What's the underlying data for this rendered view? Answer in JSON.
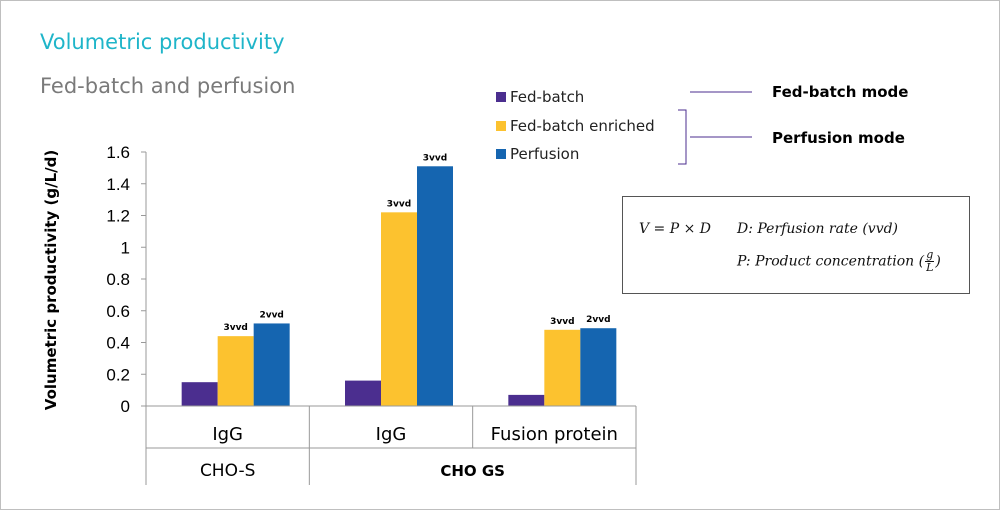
{
  "title": "Volumetric productivity",
  "subtitle": "Fed-batch and perfusion",
  "colors": {
    "fed_batch": "#4b2e8f",
    "fed_batch_enriched": "#fcc22f",
    "perfusion": "#1565b0"
  },
  "mode_labels": {
    "fed_batch_mode": "Fed-batch mode",
    "perfusion_mode": "Perfusion mode"
  },
  "formula": {
    "line1": "V = P × D",
    "line2": "D: Perfusion rate (vvd)",
    "line3_prefix": "P: Product concentration (",
    "frac_num": "g",
    "frac_den": "L",
    "line3_suffix": ")"
  },
  "chart_data": {
    "type": "bar",
    "ylabel": "Volumetric productivity (g/L/d)",
    "ylim": [
      0,
      1.6
    ],
    "yticks": [
      "0",
      "0.2",
      "0.4",
      "0.6",
      "0.8",
      "1",
      "1.2",
      "1.4",
      "1.6"
    ],
    "categories": [
      "IgG",
      "IgG",
      "Fusion protein"
    ],
    "groups": [
      {
        "label": "CHO-S",
        "span": 1
      },
      {
        "label": "CHO GS",
        "span": 2
      }
    ],
    "series": [
      {
        "name": "Fed-batch",
        "color": "#4b2e8f",
        "values": [
          0.15,
          0.16,
          0.07
        ]
      },
      {
        "name": "Fed-batch enriched",
        "color": "#fcc22f",
        "values": [
          0.44,
          1.22,
          0.48
        ]
      },
      {
        "name": "Perfusion",
        "color": "#1565b0",
        "values": [
          0.52,
          1.51,
          0.49
        ]
      }
    ],
    "bar_annotations": [
      {
        "series": 1,
        "category": 0,
        "text": "3vvd"
      },
      {
        "series": 2,
        "category": 0,
        "text": "2vvd"
      },
      {
        "series": 1,
        "category": 1,
        "text": "3vvd"
      },
      {
        "series": 2,
        "category": 1,
        "text": "3vvd"
      },
      {
        "series": 1,
        "category": 2,
        "text": "3vvd"
      },
      {
        "series": 2,
        "category": 2,
        "text": "2vvd"
      }
    ],
    "legend_position": "top-center",
    "grid": false
  }
}
